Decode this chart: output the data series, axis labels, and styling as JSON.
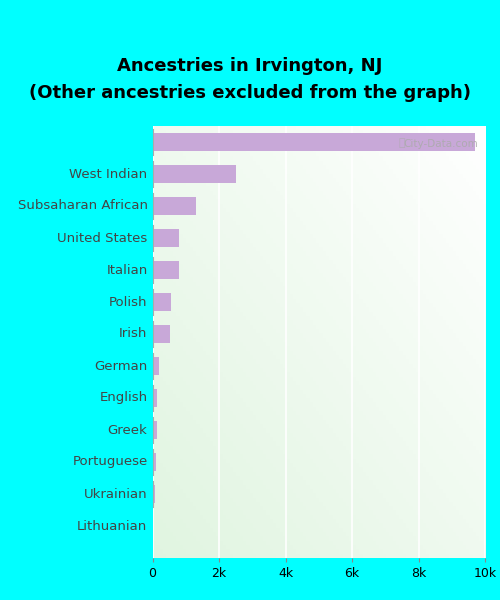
{
  "title_line1": "Ancestries in Irvington, NJ",
  "title_line2": "(Other ancestries excluded from the graph)",
  "categories": [
    "West Indian",
    "Subsaharan African",
    "United States",
    "Italian",
    "Polish",
    "Irish",
    "German",
    "English",
    "Greek",
    "Portuguese",
    "Ukrainian",
    "Lithuanian"
  ],
  "values": [
    9700,
    2500,
    1300,
    800,
    790,
    550,
    530,
    200,
    150,
    145,
    100,
    75
  ],
  "bar_color": "#c8a8d8",
  "background_color_top": "#daf0dc",
  "background_color_right": "#f5fdf5",
  "outer_background": "#00ffff",
  "xlim": [
    0,
    10000
  ],
  "xticks": [
    0,
    2000,
    4000,
    6000,
    8000,
    10000
  ],
  "xtick_labels": [
    "0",
    "2k",
    "4k",
    "6k",
    "8k",
    "10k"
  ],
  "watermark": "City-Data.com",
  "title_fontsize": 13,
  "label_fontsize": 9.5,
  "tick_fontsize": 9
}
